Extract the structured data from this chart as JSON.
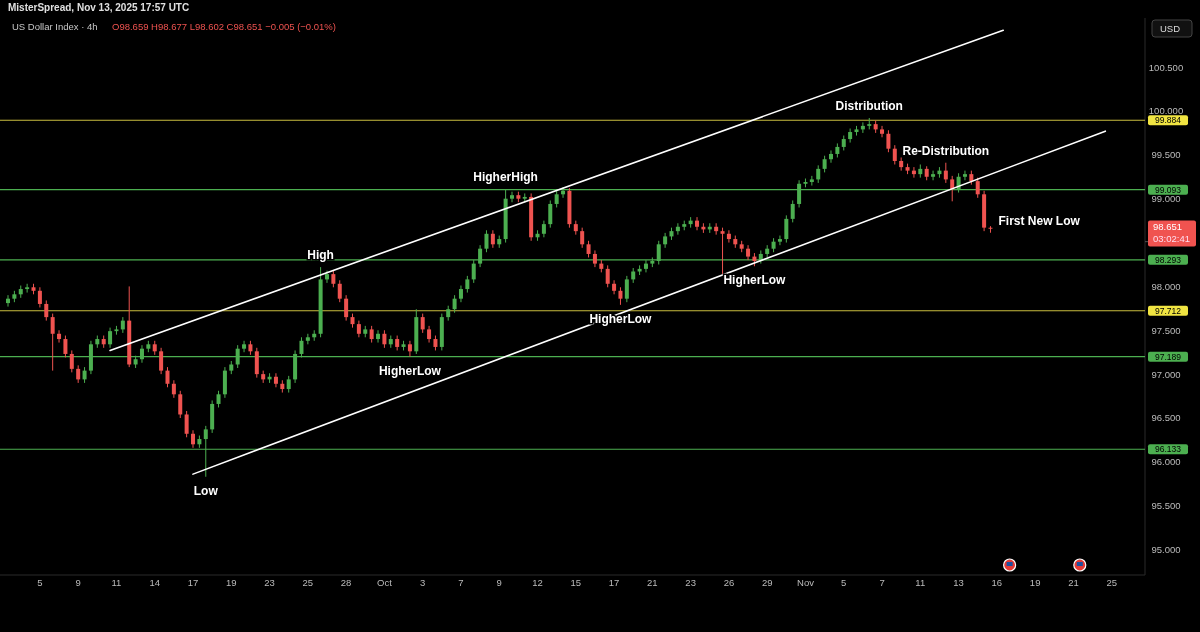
{
  "chart_data": {
    "type": "candlestick",
    "title": "US Dollar Index · 4h",
    "subtitle": "O98.659 H98.677 L98.602 C98.651 −0.005 (−0.01%)",
    "categories": [
      null,
      null,
      null,
      null,
      null,
      "5",
      null,
      null,
      null,
      null,
      null,
      "9",
      null,
      null,
      null,
      null,
      null,
      "11",
      null,
      null,
      null,
      null,
      null,
      "14",
      null,
      null,
      null,
      null,
      null,
      "17",
      null,
      null,
      null,
      null,
      null,
      "19",
      null,
      null,
      null,
      null,
      null,
      "23",
      null,
      null,
      null,
      null,
      null,
      "25",
      null,
      null,
      null,
      null,
      null,
      "28",
      null,
      null,
      null,
      null,
      null,
      "Oct",
      null,
      null,
      null,
      null,
      null,
      "3",
      null,
      null,
      null,
      null,
      null,
      "7",
      null,
      null,
      null,
      null,
      null,
      "9",
      null,
      null,
      null,
      null,
      null,
      "12",
      null,
      null,
      null,
      null,
      null,
      "15",
      null,
      null,
      null,
      null,
      null,
      "17",
      null,
      null,
      null,
      null,
      null,
      "21",
      null,
      null,
      null,
      null,
      null,
      "23",
      null,
      null,
      null,
      null,
      null,
      "26",
      null,
      null,
      null,
      null,
      null,
      "29",
      null,
      null,
      null,
      null,
      null,
      "Nov",
      null,
      null,
      null,
      null,
      null,
      "5",
      null,
      null,
      null,
      null,
      null,
      "7",
      null,
      null,
      null,
      null,
      null,
      "11",
      null,
      null,
      null,
      null,
      null,
      "13",
      null,
      null,
      null,
      null,
      null,
      "16",
      null,
      null,
      null,
      null,
      null,
      "19",
      null,
      null,
      null,
      null,
      null,
      "21",
      null,
      null,
      null,
      null,
      null,
      "25",
      null,
      null,
      null,
      null,
      null
    ],
    "ohlc": [
      [
        97.8,
        97.89,
        97.76,
        97.85
      ],
      [
        97.85,
        97.94,
        97.81,
        97.9
      ],
      [
        97.9,
        98.0,
        97.86,
        97.96
      ],
      [
        97.96,
        98.02,
        97.92,
        97.98
      ],
      [
        97.98,
        98.02,
        97.9,
        97.94
      ],
      [
        97.94,
        97.98,
        97.75,
        97.79
      ],
      [
        97.79,
        97.83,
        97.6,
        97.64
      ],
      [
        97.64,
        97.68,
        97.03,
        97.45
      ],
      [
        97.45,
        97.49,
        97.35,
        97.39
      ],
      [
        97.39,
        97.43,
        97.18,
        97.22
      ],
      [
        97.22,
        97.26,
        97.01,
        97.05
      ],
      [
        97.05,
        97.09,
        96.89,
        96.93
      ],
      [
        96.93,
        97.07,
        96.89,
        97.03
      ],
      [
        97.03,
        97.37,
        96.99,
        97.33
      ],
      [
        97.33,
        97.43,
        97.29,
        97.39
      ],
      [
        97.39,
        97.43,
        97.29,
        97.33
      ],
      [
        97.33,
        97.52,
        97.29,
        97.48
      ],
      [
        97.48,
        97.54,
        97.44,
        97.5
      ],
      [
        97.5,
        97.64,
        97.46,
        97.6
      ],
      [
        97.6,
        97.99,
        97.07,
        97.1
      ],
      [
        97.1,
        97.2,
        97.06,
        97.16
      ],
      [
        97.16,
        97.32,
        97.12,
        97.28
      ],
      [
        97.28,
        97.37,
        97.24,
        97.33
      ],
      [
        97.33,
        97.37,
        97.21,
        97.25
      ],
      [
        97.25,
        97.29,
        96.99,
        97.03
      ],
      [
        97.03,
        97.07,
        96.84,
        96.88
      ],
      [
        96.88,
        96.92,
        96.72,
        96.76
      ],
      [
        96.76,
        96.8,
        96.49,
        96.53
      ],
      [
        96.53,
        96.57,
        96.27,
        96.31
      ],
      [
        96.31,
        96.35,
        96.15,
        96.19
      ],
      [
        96.19,
        96.29,
        96.15,
        96.25
      ],
      [
        96.25,
        96.4,
        95.82,
        96.36
      ],
      [
        96.36,
        96.69,
        96.32,
        96.65
      ],
      [
        96.65,
        96.8,
        96.61,
        96.76
      ],
      [
        96.76,
        97.07,
        96.72,
        97.03
      ],
      [
        97.03,
        97.14,
        96.99,
        97.1
      ],
      [
        97.1,
        97.32,
        97.06,
        97.28
      ],
      [
        97.28,
        97.37,
        97.24,
        97.33
      ],
      [
        97.33,
        97.37,
        97.21,
        97.25
      ],
      [
        97.25,
        97.29,
        96.95,
        96.99
      ],
      [
        96.99,
        97.03,
        96.89,
        96.93
      ],
      [
        96.93,
        97.0,
        96.89,
        96.96
      ],
      [
        96.96,
        97.0,
        96.84,
        96.88
      ],
      [
        96.88,
        96.92,
        96.78,
        96.82
      ],
      [
        96.82,
        96.97,
        96.78,
        96.93
      ],
      [
        96.93,
        97.26,
        96.89,
        97.22
      ],
      [
        97.22,
        97.41,
        97.18,
        97.37
      ],
      [
        97.37,
        97.45,
        97.33,
        97.41
      ],
      [
        97.41,
        97.49,
        97.37,
        97.45
      ],
      [
        97.45,
        98.21,
        97.41,
        98.07
      ],
      [
        98.07,
        98.17,
        98.03,
        98.13
      ],
      [
        98.13,
        98.17,
        97.98,
        98.02
      ],
      [
        98.02,
        98.06,
        97.81,
        97.85
      ],
      [
        97.85,
        97.89,
        97.6,
        97.64
      ],
      [
        97.64,
        97.68,
        97.52,
        97.56
      ],
      [
        97.56,
        97.6,
        97.41,
        97.45
      ],
      [
        97.45,
        97.54,
        97.41,
        97.5
      ],
      [
        97.5,
        97.54,
        97.35,
        97.39
      ],
      [
        97.39,
        97.49,
        97.35,
        97.45
      ],
      [
        97.45,
        97.49,
        97.29,
        97.33
      ],
      [
        97.33,
        97.43,
        97.29,
        97.39
      ],
      [
        97.39,
        97.43,
        97.26,
        97.3
      ],
      [
        97.3,
        97.37,
        97.26,
        97.33
      ],
      [
        97.33,
        97.37,
        97.19,
        97.25
      ],
      [
        97.25,
        97.73,
        97.22,
        97.64
      ],
      [
        97.64,
        97.68,
        97.46,
        97.5
      ],
      [
        97.5,
        97.54,
        97.35,
        97.39
      ],
      [
        97.39,
        97.43,
        97.26,
        97.3
      ],
      [
        97.3,
        97.68,
        97.26,
        97.64
      ],
      [
        97.64,
        97.77,
        97.6,
        97.73
      ],
      [
        97.73,
        97.89,
        97.69,
        97.85
      ],
      [
        97.85,
        98.0,
        97.81,
        97.96
      ],
      [
        97.96,
        98.11,
        97.92,
        98.07
      ],
      [
        98.07,
        98.29,
        98.03,
        98.25
      ],
      [
        98.25,
        98.46,
        98.21,
        98.42
      ],
      [
        98.42,
        98.63,
        98.38,
        98.59
      ],
      [
        98.59,
        98.63,
        98.43,
        98.47
      ],
      [
        98.47,
        98.57,
        98.43,
        98.53
      ],
      [
        98.53,
        99.1,
        98.49,
        98.99
      ],
      [
        98.99,
        99.07,
        98.95,
        99.03
      ],
      [
        99.03,
        99.07,
        98.95,
        98.99
      ],
      [
        98.99,
        99.05,
        98.95,
        99.01
      ],
      [
        99.01,
        99.05,
        98.51,
        98.55
      ],
      [
        98.55,
        98.63,
        98.51,
        98.59
      ],
      [
        98.59,
        98.74,
        98.55,
        98.7
      ],
      [
        98.7,
        98.97,
        98.66,
        98.93
      ],
      [
        98.93,
        99.08,
        98.89,
        99.04
      ],
      [
        99.04,
        99.12,
        99.0,
        99.08
      ],
      [
        99.08,
        99.11,
        98.66,
        98.7
      ],
      [
        98.7,
        98.74,
        98.58,
        98.62
      ],
      [
        98.62,
        98.66,
        98.43,
        98.47
      ],
      [
        98.47,
        98.51,
        98.32,
        98.36
      ],
      [
        98.36,
        98.4,
        98.21,
        98.25
      ],
      [
        98.25,
        98.29,
        98.15,
        98.19
      ],
      [
        98.19,
        98.23,
        97.98,
        98.02
      ],
      [
        98.02,
        98.06,
        97.9,
        97.94
      ],
      [
        97.94,
        97.98,
        97.78,
        97.85
      ],
      [
        97.85,
        98.11,
        97.81,
        98.07
      ],
      [
        98.07,
        98.2,
        98.03,
        98.16
      ],
      [
        98.16,
        98.23,
        98.12,
        98.19
      ],
      [
        98.19,
        98.29,
        98.15,
        98.25
      ],
      [
        98.25,
        98.32,
        98.21,
        98.28
      ],
      [
        98.28,
        98.51,
        98.24,
        98.47
      ],
      [
        98.47,
        98.6,
        98.43,
        98.56
      ],
      [
        98.56,
        98.66,
        98.52,
        98.62
      ],
      [
        98.62,
        98.71,
        98.58,
        98.67
      ],
      [
        98.67,
        98.74,
        98.63,
        98.7
      ],
      [
        98.7,
        98.78,
        98.66,
        98.74
      ],
      [
        98.74,
        98.78,
        98.63,
        98.67
      ],
      [
        98.67,
        98.71,
        98.6,
        98.64
      ],
      [
        98.64,
        98.71,
        98.6,
        98.67
      ],
      [
        98.67,
        98.71,
        98.58,
        98.62
      ],
      [
        98.62,
        98.66,
        98.13,
        98.59
      ],
      [
        98.59,
        98.63,
        98.49,
        98.53
      ],
      [
        98.53,
        98.57,
        98.43,
        98.47
      ],
      [
        98.47,
        98.51,
        98.38,
        98.42
      ],
      [
        98.42,
        98.46,
        98.29,
        98.33
      ],
      [
        98.33,
        98.37,
        98.22,
        98.28
      ],
      [
        98.28,
        98.4,
        98.25,
        98.36
      ],
      [
        98.36,
        98.46,
        98.32,
        98.42
      ],
      [
        98.42,
        98.54,
        98.38,
        98.5
      ],
      [
        98.5,
        98.57,
        98.46,
        98.53
      ],
      [
        98.53,
        98.8,
        98.49,
        98.76
      ],
      [
        98.76,
        98.97,
        98.72,
        98.93
      ],
      [
        98.93,
        99.2,
        98.89,
        99.16
      ],
      [
        99.16,
        99.22,
        99.12,
        99.18
      ],
      [
        99.18,
        99.25,
        99.14,
        99.21
      ],
      [
        99.21,
        99.37,
        99.17,
        99.33
      ],
      [
        99.33,
        99.48,
        99.29,
        99.44
      ],
      [
        99.44,
        99.54,
        99.4,
        99.5
      ],
      [
        99.5,
        99.62,
        99.46,
        99.58
      ],
      [
        99.58,
        99.71,
        99.54,
        99.67
      ],
      [
        99.67,
        99.79,
        99.63,
        99.75
      ],
      [
        99.75,
        99.82,
        99.71,
        99.78
      ],
      [
        99.78,
        99.86,
        99.74,
        99.82
      ],
      [
        99.82,
        99.91,
        99.78,
        99.84
      ],
      [
        99.84,
        99.88,
        99.74,
        99.78
      ],
      [
        99.78,
        99.82,
        99.69,
        99.73
      ],
      [
        99.73,
        99.77,
        99.52,
        99.56
      ],
      [
        99.56,
        99.6,
        99.38,
        99.42
      ],
      [
        99.42,
        99.46,
        99.31,
        99.35
      ],
      [
        99.35,
        99.39,
        99.27,
        99.31
      ],
      [
        99.31,
        99.35,
        99.23,
        99.27
      ],
      [
        99.27,
        99.38,
        99.23,
        99.33
      ],
      [
        99.33,
        99.36,
        99.2,
        99.24
      ],
      [
        99.24,
        99.31,
        99.2,
        99.27
      ],
      [
        99.27,
        99.35,
        99.23,
        99.31
      ],
      [
        99.31,
        99.4,
        99.17,
        99.21
      ],
      [
        99.21,
        99.25,
        98.96,
        99.1
      ],
      [
        99.1,
        99.28,
        99.06,
        99.24
      ],
      [
        99.24,
        99.31,
        99.2,
        99.27
      ],
      [
        99.27,
        99.31,
        99.15,
        99.19
      ],
      [
        99.19,
        99.23,
        99.0,
        99.04
      ],
      [
        99.04,
        99.08,
        98.62,
        98.66
      ],
      [
        98.659,
        98.677,
        98.602,
        98.651
      ],
      null,
      null,
      null,
      null,
      null,
      null,
      null,
      null,
      null,
      null,
      null,
      null,
      null,
      null,
      null,
      null,
      null,
      null,
      null,
      null,
      null,
      null,
      null,
      null
    ],
    "series": [
      {
        "type": "line",
        "color": "#ffffff",
        "values": [
          null,
          null,
          null,
          null,
          null,
          null,
          null,
          null,
          null,
          null,
          null,
          null,
          null,
          null,
          null,
          null,
          97.26,
          null,
          null,
          null,
          null,
          null,
          null,
          null,
          null,
          null,
          null,
          null,
          null,
          null,
          null,
          null,
          null,
          null,
          null,
          null,
          null,
          null,
          null,
          null,
          null,
          null,
          null,
          null,
          null,
          null,
          null,
          null,
          null,
          null,
          null,
          null,
          null,
          null,
          null,
          null,
          null,
          null,
          null,
          null,
          null,
          null,
          null,
          null,
          null,
          null,
          null,
          null,
          null,
          null,
          null,
          null,
          null,
          null,
          null,
          null,
          null,
          null,
          null,
          null,
          null,
          null,
          null,
          null,
          null,
          null,
          null,
          null,
          null,
          null,
          null,
          null,
          null,
          null,
          null,
          null,
          null,
          null,
          null,
          null,
          null,
          null,
          null,
          null,
          null,
          null,
          null,
          null,
          null,
          null,
          null,
          null,
          null,
          null,
          null,
          null,
          null,
          null,
          null,
          null,
          null,
          null,
          null,
          null,
          null,
          null,
          null,
          null,
          null,
          null,
          null,
          null,
          null,
          null,
          null,
          null,
          null,
          null,
          null,
          null,
          null,
          null,
          null,
          null,
          null,
          null,
          null,
          null,
          null,
          null,
          null,
          null,
          null,
          null,
          null,
          null,
          100.91,
          null,
          null,
          null,
          null,
          null,
          null,
          null,
          null,
          null,
          null,
          null,
          null,
          null,
          null,
          null,
          null,
          null,
          null,
          null,
          null,
          null,
          null
        ]
      },
      {
        "type": "line",
        "color": "#ffffff",
        "values": [
          null,
          null,
          null,
          null,
          null,
          null,
          null,
          null,
          null,
          null,
          null,
          null,
          null,
          null,
          null,
          null,
          null,
          null,
          null,
          null,
          null,
          null,
          null,
          null,
          null,
          null,
          null,
          null,
          null,
          95.85,
          null,
          null,
          null,
          null,
          null,
          null,
          null,
          null,
          null,
          null,
          null,
          null,
          null,
          null,
          null,
          null,
          null,
          null,
          null,
          null,
          null,
          null,
          null,
          null,
          null,
          null,
          null,
          null,
          null,
          null,
          null,
          null,
          null,
          null,
          null,
          null,
          null,
          null,
          null,
          null,
          null,
          null,
          null,
          null,
          null,
          null,
          null,
          null,
          null,
          null,
          null,
          null,
          null,
          null,
          null,
          null,
          null,
          null,
          null,
          null,
          null,
          null,
          null,
          null,
          null,
          null,
          null,
          null,
          null,
          null,
          null,
          null,
          null,
          null,
          null,
          null,
          null,
          null,
          null,
          null,
          null,
          null,
          null,
          null,
          null,
          null,
          null,
          null,
          null,
          null,
          null,
          null,
          null,
          null,
          null,
          null,
          null,
          null,
          null,
          null,
          null,
          null,
          null,
          null,
          null,
          null,
          null,
          null,
          null,
          null,
          null,
          null,
          null,
          null,
          null,
          null,
          null,
          null,
          null,
          null,
          null,
          null,
          null,
          null,
          null,
          null,
          null,
          null,
          null,
          null,
          null,
          null,
          null,
          null,
          null,
          null,
          null,
          null,
          null,
          null,
          null,
          null,
          99.76,
          null,
          null,
          null,
          null,
          null,
          null
        ]
      }
    ],
    "ylim": [
      94.7,
      101.05
    ],
    "yticks": [
      {
        "value": 95,
        "label": "95.000"
      },
      {
        "value": 95.5,
        "label": "95.500"
      },
      {
        "value": 96,
        "label": "96.000"
      },
      {
        "value": 96.5,
        "label": "96.500"
      },
      {
        "value": 97,
        "label": "97.000"
      },
      {
        "value": 97.5,
        "label": "97.500"
      },
      {
        "value": 98,
        "label": "98.000"
      },
      {
        "value": 98.5,
        "label": null
      },
      {
        "value": 99,
        "label": "99.000"
      },
      {
        "value": 99.5,
        "label": "99.500"
      },
      {
        "value": 100,
        "label": "100.000"
      },
      {
        "value": 100.5,
        "label": "100.500"
      }
    ],
    "ref_lines": [
      {
        "axis": "y",
        "value": 99.884,
        "label": "99.884",
        "color": "#c9bd3f"
      },
      {
        "axis": "y",
        "value": 99.093,
        "label": "99.093",
        "color": "#4caf50"
      },
      {
        "axis": "y",
        "value": 98.293,
        "label": "98.293",
        "color": "#4caf50"
      },
      {
        "axis": "y",
        "value": 97.712,
        "label": "97.712",
        "color": "#c9bd3f"
      },
      {
        "axis": "y",
        "value": 97.189,
        "label": "97.189",
        "color": "#4caf50"
      },
      {
        "axis": "y",
        "value": 96.133,
        "label": "96.133",
        "color": "#4caf50"
      }
    ],
    "annotations": [
      "MisterSpread, Nov 13, 2025 17:57 UTC",
      "USD",
      "03:02:41",
      "98.651",
      "First New Low",
      {
        "text": "Low",
        "y": 95.82
      },
      {
        "text": "High",
        "y": 98.21
      },
      {
        "text": "HigherLow",
        "y": 97.19
      },
      {
        "text": "HigherHigh",
        "y": 99.1
      },
      {
        "text": "HigherLow",
        "y": 97.78
      },
      {
        "text": "HigherLow",
        "y": 98.22
      },
      {
        "text": "Distribution",
        "y": 99.91
      },
      {
        "text": "Re-Distribution",
        "y": 99.4
      }
    ]
  }
}
